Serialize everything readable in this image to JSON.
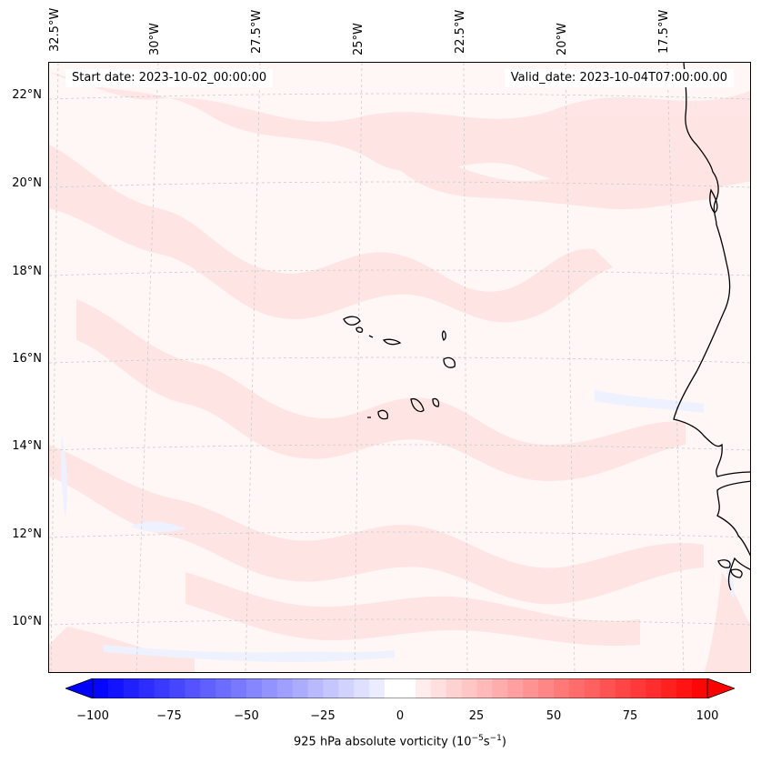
{
  "header": {
    "start_date": "Start date: 2023-10-02_00:00:00",
    "valid_date": "Valid_date: 2023-10-04T07:00:00.00"
  },
  "axes": {
    "lon_labels": [
      "32.5°W",
      "30°W",
      "27.5°W",
      "25°W",
      "22.5°W",
      "20°W",
      "17.5°W"
    ],
    "lat_labels": [
      "22°N",
      "20°N",
      "18°N",
      "16°N",
      "14°N",
      "12°N",
      "10°N"
    ]
  },
  "colorbar": {
    "ticks": [
      "−100",
      "−75",
      "−50",
      "−25",
      "0",
      "25",
      "50",
      "75",
      "100"
    ],
    "min": -100,
    "max": 100,
    "neg_color": "#0000ff",
    "pos_color": "#ff0000",
    "label": "925 hPa absolute vorticity (10",
    "label_exp1": "−5",
    "label_mid": "s",
    "label_exp2": "−1",
    "label_end": ")"
  },
  "map": {
    "field": "925 hPa absolute vorticity",
    "background_color": "#fff6f6",
    "weak_positive_color": "#ffe2e2",
    "weak_negative_color": "#eef1ff",
    "coastline_color": "#000000",
    "gridline_color": "#cccccc"
  }
}
